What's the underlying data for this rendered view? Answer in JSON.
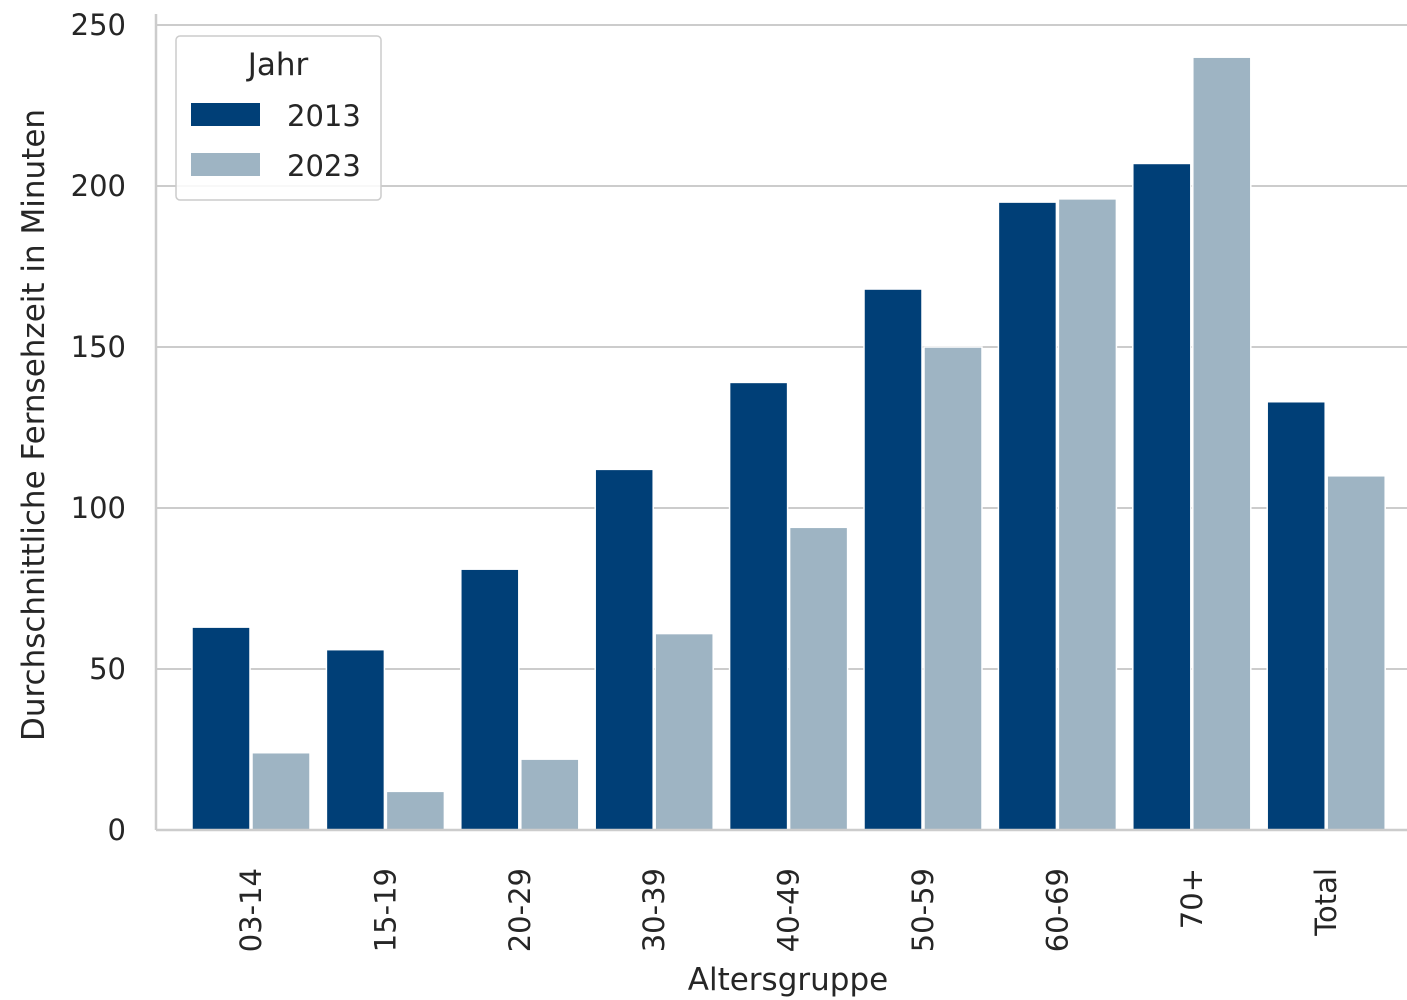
{
  "chart_data": {
    "type": "bar",
    "xlabel": "Altersgruppe",
    "ylabel": "Durchschnittliche Fernsehzeit in Minuten",
    "ylim": [
      0,
      250
    ],
    "yticks": [
      "0",
      "50",
      "100",
      "150",
      "200",
      "250"
    ],
    "grid": "horizontal",
    "legend": {
      "title": "Jahr",
      "position": "top-left"
    },
    "categories": [
      "03-14",
      "15-19",
      "20-29",
      "30-39",
      "40-49",
      "50-59",
      "60-69",
      "70+",
      "Total"
    ],
    "series": [
      {
        "name": "2013",
        "color": "#003f77",
        "values": [
          63,
          56,
          81,
          112,
          139,
          168,
          195,
          207,
          133
        ]
      },
      {
        "name": "2023",
        "color": "#9eb4c3",
        "values": [
          24,
          12,
          22,
          61,
          94,
          150,
          196,
          240,
          110
        ]
      }
    ]
  }
}
